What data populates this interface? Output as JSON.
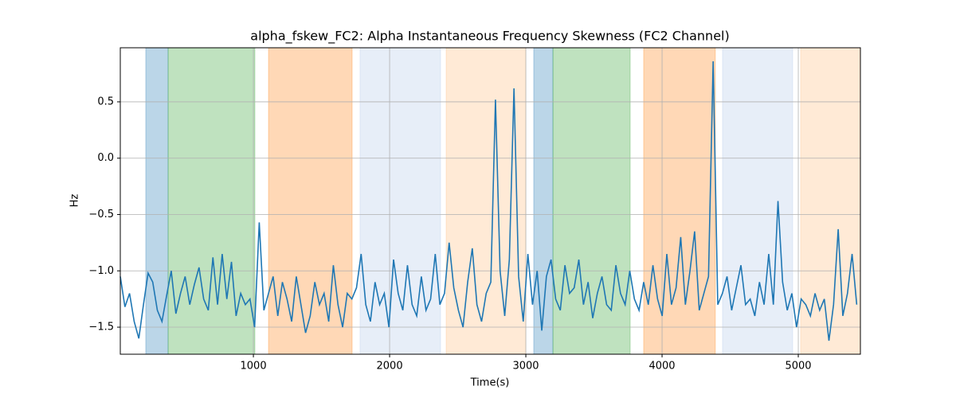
{
  "chart_data": {
    "type": "line",
    "title": "alpha_fskew_FC2: Alpha Instantaneous Frequency Skewness (FC2 Channel)",
    "x_label": "Time(s)",
    "y_label": "Hz",
    "xlim": [
      23,
      5456
    ],
    "ylim": [
      -1.74,
      0.98
    ],
    "xticks": [
      1000,
      2000,
      3000,
      4000,
      5000
    ],
    "yticks": [
      {
        "value": -1.5,
        "label": "−1.5"
      },
      {
        "value": -1.0,
        "label": "−1.0"
      },
      {
        "value": -0.5,
        "label": "−0.5"
      },
      {
        "value": 0,
        "label": "0.0"
      },
      0.5
    ],
    "grid": true,
    "spans": [
      {
        "x0": 210,
        "x1": 374,
        "color": "#1f77b4"
      },
      {
        "x0": 374,
        "x1": 1011,
        "color": "#2ca02c"
      },
      {
        "x0": 1111,
        "x1": 1725,
        "color": "#ff7f0e"
      },
      {
        "x0": 1783,
        "x1": 2374,
        "color": "#aec7e8"
      },
      {
        "x0": 2415,
        "x1": 2999,
        "color": "#ffbb78"
      },
      {
        "x0": 3058,
        "x1": 3199,
        "color": "#1f77b4"
      },
      {
        "x0": 3199,
        "x1": 3766,
        "color": "#2ca02c"
      },
      {
        "x0": 3865,
        "x1": 4391,
        "color": "#ff7f0e"
      },
      {
        "x0": 4444,
        "x1": 4959,
        "color": "#aec7e8"
      },
      {
        "x0": 5017,
        "x1": 5456,
        "color": "#ffbb78"
      }
    ],
    "series": [
      {
        "color": "#1f77b4",
        "x": [
          23,
          57,
          91,
          125,
          159,
          193,
          227,
          261,
          295,
          329,
          363,
          397,
          431,
          465,
          499,
          533,
          567,
          601,
          635,
          669,
          703,
          737,
          771,
          805,
          839,
          873,
          907,
          941,
          975,
          1009,
          1043,
          1077,
          1111,
          1145,
          1179,
          1213,
          1247,
          1281,
          1315,
          1349,
          1383,
          1417,
          1451,
          1485,
          1519,
          1553,
          1587,
          1621,
          1655,
          1689,
          1723,
          1757,
          1791,
          1825,
          1859,
          1893,
          1927,
          1961,
          1995,
          2029,
          2063,
          2097,
          2131,
          2165,
          2199,
          2233,
          2267,
          2301,
          2335,
          2369,
          2403,
          2437,
          2471,
          2505,
          2539,
          2573,
          2607,
          2641,
          2675,
          2709,
          2743,
          2777,
          2811,
          2845,
          2879,
          2913,
          2947,
          2981,
          3015,
          3049,
          3083,
          3117,
          3151,
          3185,
          3219,
          3253,
          3287,
          3321,
          3355,
          3389,
          3423,
          3457,
          3491,
          3525,
          3559,
          3593,
          3627,
          3661,
          3695,
          3729,
          3763,
          3797,
          3831,
          3865,
          3899,
          3933,
          3967,
          4001,
          4035,
          4069,
          4103,
          4137,
          4171,
          4205,
          4239,
          4273,
          4307,
          4341,
          4375,
          4409,
          4443,
          4477,
          4511,
          4545,
          4579,
          4613,
          4647,
          4681,
          4715,
          4749,
          4783,
          4817,
          4851,
          4885,
          4919,
          4953,
          4987,
          5021,
          5055,
          5089,
          5123,
          5157,
          5191,
          5225,
          5259,
          5293,
          5327,
          5361,
          5395,
          5429
        ],
        "values": [
          -1.05,
          -1.32,
          -1.2,
          -1.45,
          -1.6,
          -1.3,
          -1.02,
          -1.1,
          -1.35,
          -1.45,
          -1.22,
          -1.0,
          -1.38,
          -1.2,
          -1.05,
          -1.3,
          -1.12,
          -0.97,
          -1.25,
          -1.35,
          -0.88,
          -1.3,
          -0.85,
          -1.25,
          -0.92,
          -1.4,
          -1.2,
          -1.3,
          -1.25,
          -1.5,
          -0.57,
          -1.35,
          -1.2,
          -1.05,
          -1.4,
          -1.1,
          -1.25,
          -1.45,
          -1.05,
          -1.3,
          -1.55,
          -1.4,
          -1.1,
          -1.3,
          -1.2,
          -1.45,
          -0.95,
          -1.3,
          -1.5,
          -1.2,
          -1.25,
          -1.15,
          -0.85,
          -1.3,
          -1.45,
          -1.1,
          -1.3,
          -1.2,
          -1.5,
          -0.9,
          -1.2,
          -1.35,
          -0.95,
          -1.3,
          -1.4,
          -1.05,
          -1.35,
          -1.25,
          -0.85,
          -1.3,
          -1.2,
          -0.75,
          -1.15,
          -1.35,
          -1.5,
          -1.1,
          -0.8,
          -1.3,
          -1.45,
          -1.2,
          -1.1,
          0.52,
          -1.0,
          -1.4,
          -0.9,
          0.62,
          -1.05,
          -1.45,
          -0.85,
          -1.3,
          -1.0,
          -1.53,
          -1.05,
          -0.9,
          -1.25,
          -1.35,
          -0.95,
          -1.2,
          -1.15,
          -0.9,
          -1.3,
          -1.1,
          -1.42,
          -1.2,
          -1.05,
          -1.3,
          -1.35,
          -0.95,
          -1.2,
          -1.3,
          -1.0,
          -1.25,
          -1.35,
          -1.1,
          -1.3,
          -0.95,
          -1.25,
          -1.4,
          -0.85,
          -1.3,
          -1.15,
          -0.7,
          -1.3,
          -1.0,
          -0.65,
          -1.35,
          -1.2,
          -1.05,
          0.86,
          -1.3,
          -1.2,
          -1.05,
          -1.35,
          -1.15,
          -0.95,
          -1.3,
          -1.25,
          -1.4,
          -1.1,
          -1.3,
          -0.85,
          -1.3,
          -0.38,
          -1.1,
          -1.35,
          -1.2,
          -1.5,
          -1.25,
          -1.3,
          -1.4,
          -1.2,
          -1.35,
          -1.25,
          -1.62,
          -1.3,
          -0.63,
          -1.4,
          -1.2,
          -0.85,
          -1.3
        ]
      }
    ]
  }
}
